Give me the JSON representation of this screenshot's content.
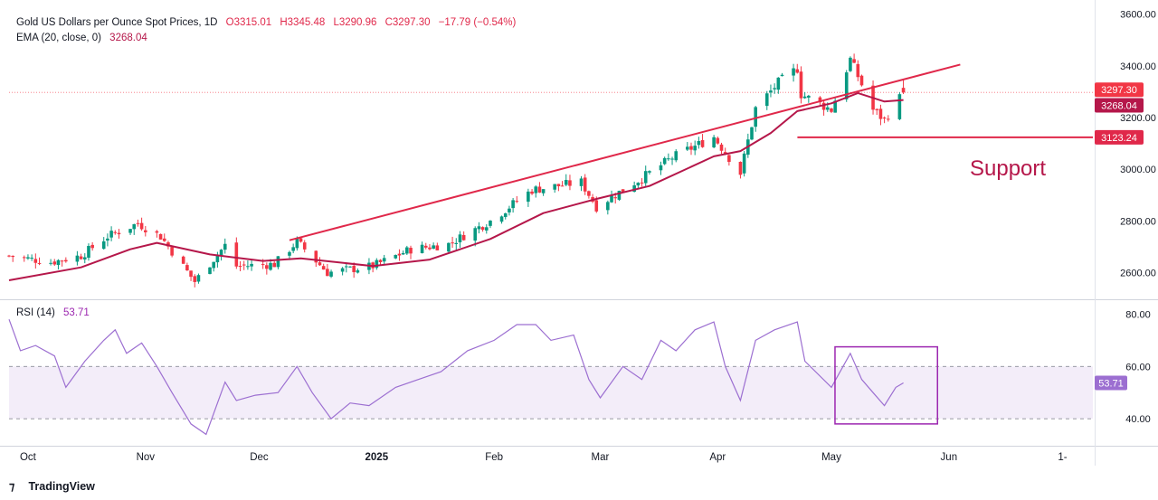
{
  "header": {
    "symbol": "Gold US Dollars per Ounce Spot Prices, 1D",
    "open": "O3315.01",
    "high": "H3345.48",
    "low": "L3290.96",
    "close": "C3297.30",
    "change": "−17.79 (−0.54%)",
    "ema_label": "EMA (20, close, 0)",
    "ema_value": "3268.04",
    "rsi_label": "RSI (14)",
    "rsi_value": "53.71"
  },
  "annotation": "Support",
  "branding": "TradingView",
  "colors": {
    "up": "#089981",
    "down": "#f23645",
    "ema": "#b5174a",
    "trend": "#e0284a",
    "rsi": "#9c6fd1",
    "box": "#9c27b0"
  },
  "chart_data": [
    {
      "type": "candlestick",
      "title": "Gold US Dollars per Ounce Spot Prices, 1D",
      "ylim": [
        2500,
        3620
      ],
      "y_ticks": [
        "3600.00",
        "3400.00",
        "3200.00",
        "3000.00",
        "2800.00",
        "2600.00"
      ],
      "y_tick_values": [
        3600,
        3400,
        3200,
        3000,
        2800,
        2600
      ],
      "x_ticks": [
        "Oct",
        "Nov",
        "Dec",
        "2025",
        "Feb",
        "Mar",
        "Apr",
        "May",
        "Jun",
        "1-"
      ],
      "x_tick_dates": [
        "2024-10-01",
        "2024-11-01",
        "2024-12-01",
        "2025-01-01",
        "2025-02-01",
        "2025-03-01",
        "2025-04-01",
        "2025-05-01",
        "2025-06-01",
        "2025-07-01"
      ],
      "x_range": [
        "2024-09-26",
        "2025-07-09"
      ],
      "price_labels": [
        {
          "label": "3297.30",
          "value": 3297.3,
          "kind": "last"
        },
        {
          "label": "3268.04",
          "value": 3268.04,
          "kind": "ema"
        },
        {
          "label": "3123.24",
          "value": 3123.24,
          "kind": "support"
        }
      ],
      "current_price_line": 3297.3,
      "trendline": {
        "from": [
          "2024-12-09",
          2725
        ],
        "to": [
          "2025-06-04",
          3405
        ]
      },
      "support_line": {
        "from": [
          "2025-04-28",
          3123.24
        ],
        "to": [
          "2025-07-09",
          3123.24
        ]
      },
      "key_points": [
        [
          "2024-09-26",
          2665
        ],
        [
          "2024-10-07",
          2640
        ],
        [
          "2024-10-15",
          2665
        ],
        [
          "2024-10-22",
          2740
        ],
        [
          "2024-10-30",
          2790
        ],
        [
          "2024-11-05",
          2740
        ],
        [
          "2024-11-14",
          2565
        ],
        [
          "2024-11-22",
          2705
        ],
        [
          "2024-11-25",
          2625
        ],
        [
          "2024-12-05",
          2632
        ],
        [
          "2024-12-11",
          2720
        ],
        [
          "2024-12-19",
          2600
        ],
        [
          "2024-12-31",
          2625
        ],
        [
          "2025-01-10",
          2690
        ],
        [
          "2025-01-20",
          2710
        ],
        [
          "2025-01-31",
          2800
        ],
        [
          "2025-02-11",
          2920
        ],
        [
          "2025-02-24",
          2950
        ],
        [
          "2025-02-28",
          2855
        ],
        [
          "2025-03-14",
          2985
        ],
        [
          "2025-03-20",
          3045
        ],
        [
          "2025-03-31",
          3125
        ],
        [
          "2025-04-07",
          2985
        ],
        [
          "2025-04-11",
          3235
        ],
        [
          "2025-04-17",
          3335
        ],
        [
          "2025-04-22",
          3390
        ],
        [
          "2025-04-23",
          3290
        ],
        [
          "2025-05-01",
          3230
        ],
        [
          "2025-05-06",
          3425
        ],
        [
          "2025-05-12",
          3230
        ],
        [
          "2025-05-15",
          3190
        ],
        [
          "2025-05-20",
          3297.3
        ]
      ],
      "ema_points": [
        [
          "2024-09-26",
          2570
        ],
        [
          "2024-10-15",
          2620
        ],
        [
          "2024-10-28",
          2690
        ],
        [
          "2024-11-04",
          2715
        ],
        [
          "2024-11-18",
          2670
        ],
        [
          "2024-12-02",
          2645
        ],
        [
          "2024-12-12",
          2655
        ],
        [
          "2024-12-31",
          2625
        ],
        [
          "2025-01-15",
          2650
        ],
        [
          "2025-01-31",
          2730
        ],
        [
          "2025-02-14",
          2830
        ],
        [
          "2025-02-28",
          2885
        ],
        [
          "2025-03-14",
          2935
        ],
        [
          "2025-03-31",
          3050
        ],
        [
          "2025-04-07",
          3070
        ],
        [
          "2025-04-15",
          3140
        ],
        [
          "2025-04-22",
          3225
        ],
        [
          "2025-05-01",
          3255
        ],
        [
          "2025-05-08",
          3295
        ],
        [
          "2025-05-15",
          3262
        ],
        [
          "2025-05-20",
          3268.04
        ]
      ]
    },
    {
      "type": "line",
      "title": "RSI (14)",
      "ylim": [
        30,
        85
      ],
      "y_ticks": [
        "80.00",
        "60.00",
        "40.00"
      ],
      "y_tick_values": [
        80,
        60,
        40
      ],
      "band": [
        40,
        60
      ],
      "last_label": "53.71",
      "highlight_box": {
        "from": [
          "2025-05-01",
          38
        ],
        "to": [
          "2025-05-29",
          67.5
        ]
      },
      "points": [
        [
          "2024-09-26",
          78
        ],
        [
          "2024-09-29",
          66
        ],
        [
          "2024-10-03",
          68
        ],
        [
          "2024-10-08",
          64
        ],
        [
          "2024-10-11",
          52
        ],
        [
          "2024-10-16",
          62
        ],
        [
          "2024-10-21",
          70
        ],
        [
          "2024-10-24",
          74
        ],
        [
          "2024-10-27",
          65
        ],
        [
          "2024-10-31",
          69
        ],
        [
          "2024-11-04",
          60
        ],
        [
          "2024-11-08",
          50
        ],
        [
          "2024-11-13",
          38
        ],
        [
          "2024-11-17",
          34
        ],
        [
          "2024-11-22",
          54
        ],
        [
          "2024-11-25",
          47
        ],
        [
          "2024-11-30",
          49
        ],
        [
          "2024-12-06",
          50
        ],
        [
          "2024-12-11",
          60
        ],
        [
          "2024-12-15",
          50
        ],
        [
          "2024-12-20",
          40
        ],
        [
          "2024-12-25",
          46
        ],
        [
          "2024-12-30",
          45
        ],
        [
          "2025-01-06",
          52
        ],
        [
          "2025-01-12",
          55
        ],
        [
          "2025-01-18",
          58
        ],
        [
          "2025-01-25",
          66
        ],
        [
          "2025-02-01",
          70
        ],
        [
          "2025-02-07",
          76
        ],
        [
          "2025-02-12",
          76
        ],
        [
          "2025-02-16",
          70
        ],
        [
          "2025-02-22",
          72
        ],
        [
          "2025-02-26",
          55
        ],
        [
          "2025-03-01",
          48
        ],
        [
          "2025-03-07",
          60
        ],
        [
          "2025-03-12",
          55
        ],
        [
          "2025-03-17",
          70
        ],
        [
          "2025-03-21",
          66
        ],
        [
          "2025-03-26",
          74
        ],
        [
          "2025-03-31",
          77
        ],
        [
          "2025-04-03",
          60
        ],
        [
          "2025-04-07",
          47
        ],
        [
          "2025-04-11",
          70
        ],
        [
          "2025-04-16",
          74
        ],
        [
          "2025-04-22",
          77
        ],
        [
          "2025-04-24",
          62
        ],
        [
          "2025-05-01",
          52
        ],
        [
          "2025-05-06",
          65
        ],
        [
          "2025-05-09",
          55
        ],
        [
          "2025-05-12",
          50
        ],
        [
          "2025-05-15",
          45
        ],
        [
          "2025-05-18",
          52
        ],
        [
          "2025-05-20",
          53.71
        ]
      ]
    }
  ]
}
